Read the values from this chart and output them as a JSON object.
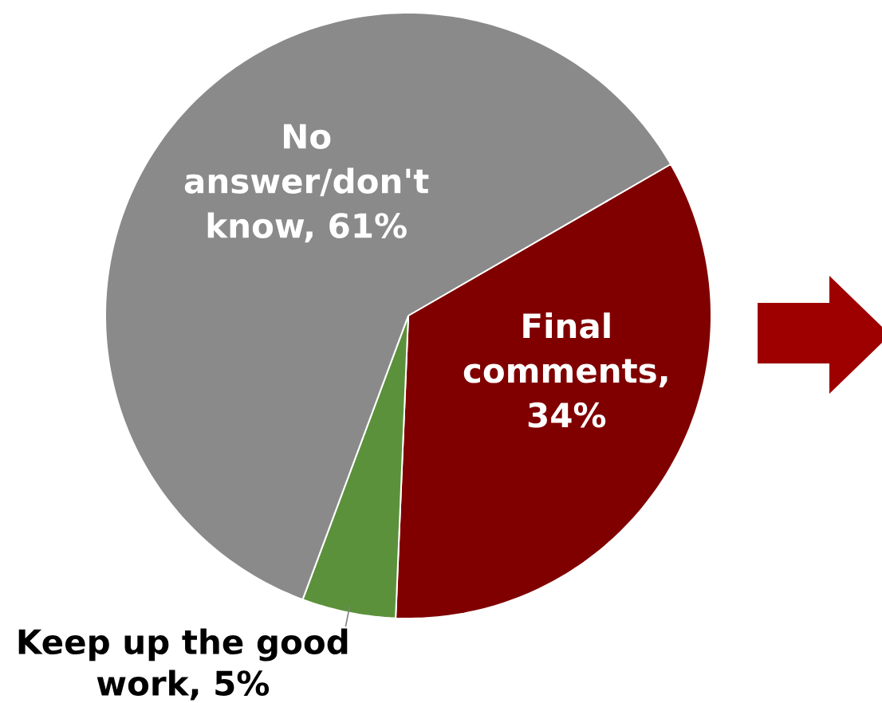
{
  "chart_data": {
    "type": "pie",
    "categories": [
      "Final comments, 34%",
      "Keep up the good work, 5%",
      "No answer/don't know, 61%"
    ],
    "values": [
      34,
      5,
      61
    ],
    "colors": [
      "#800000",
      "#5b913b",
      "#8a8a8a"
    ]
  }
}
